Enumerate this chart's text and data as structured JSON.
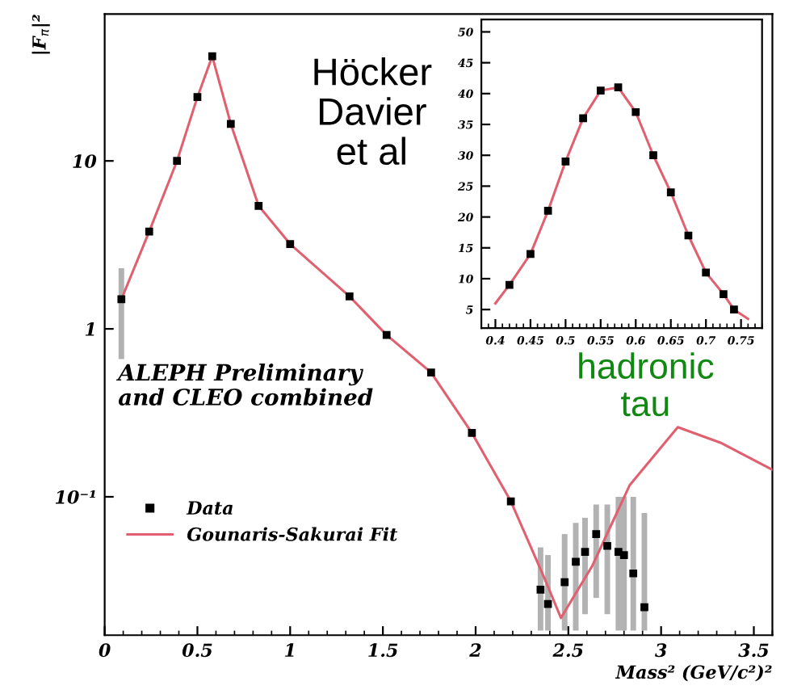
{
  "chart_data": [
    {
      "type": "scatter",
      "xlabel": "Mass² (GeV/c²)²",
      "ylabel": "|F$_{π}$|²",
      "log": "y",
      "xlim": [
        0,
        3.6
      ],
      "ylim": [
        0.015,
        75
      ],
      "xticks": [
        0,
        0.5,
        1,
        1.5,
        2,
        2.5,
        3,
        3.5
      ],
      "yticks": [
        {
          "value": 0.1,
          "label": "10⁻¹"
        },
        1,
        10
      ],
      "legend": "bottom left",
      "grid": false,
      "annotations": [
        "Höcker\nDavier\net al",
        "hadronic\ntau",
        "ALEPH Preliminary\nand CLEO combined"
      ],
      "series": [
        {
          "name": "Data",
          "marker": "square",
          "color": "#000000",
          "x": [
            0.09,
            0.24,
            0.39,
            0.5,
            0.58,
            0.68,
            0.83,
            1.0,
            1.32,
            1.52,
            1.76,
            1.98,
            2.19,
            2.35,
            2.39,
            2.48,
            2.54,
            2.59,
            2.65,
            2.71,
            2.77,
            2.8,
            2.85,
            2.91
          ],
          "values": [
            1.5,
            3.8,
            10,
            24,
            42,
            16.6,
            5.4,
            3.2,
            1.56,
            0.92,
            0.55,
            0.24,
            0.094,
            0.028,
            0.023,
            0.031,
            0.041,
            0.047,
            0.06,
            0.051,
            0.047,
            0.045,
            0.035,
            0.022
          ],
          "errors": [
            [
              0.66,
              2.3
            ],
            null,
            null,
            null,
            null,
            null,
            null,
            null,
            null,
            null,
            null,
            null,
            null,
            [
              0.016,
              0.05
            ],
            [
              0.016,
              0.045
            ],
            [
              0.016,
              0.06
            ],
            [
              0.016,
              0.07
            ],
            [
              0.02,
              0.075
            ],
            [
              0.025,
              0.09
            ],
            [
              0.02,
              0.09
            ],
            [
              0.016,
              0.1
            ],
            [
              0.016,
              0.1
            ],
            [
              0.016,
              0.1
            ],
            [
              0.016,
              0.08
            ]
          ]
        },
        {
          "name": "Gounaris-Sakurai Fit",
          "type": "line",
          "color": "#e06070",
          "line_style": "solid",
          "x": [
            0.09,
            0.24,
            0.39,
            0.5,
            0.58,
            0.68,
            0.83,
            1.0,
            1.32,
            1.52,
            1.76,
            1.98,
            2.19,
            2.37,
            2.46,
            2.63,
            2.83,
            3.09,
            3.32,
            3.6
          ],
          "values": [
            1.5,
            3.8,
            10,
            24,
            42,
            16.6,
            5.4,
            3.2,
            1.56,
            0.92,
            0.55,
            0.24,
            0.094,
            0.033,
            0.019,
            0.039,
            0.117,
            0.26,
            0.21,
            0.145
          ]
        }
      ]
    },
    {
      "type": "scatter",
      "xlim": [
        0.38,
        0.78
      ],
      "ylim": [
        2,
        52
      ],
      "xticks": [
        0.4,
        0.45,
        0.5,
        0.55,
        0.6,
        0.65,
        0.7,
        0.75
      ],
      "yticks": [
        5,
        10,
        15,
        20,
        25,
        30,
        35,
        40,
        45,
        50
      ],
      "grid": false,
      "series": [
        {
          "marker": "square",
          "color": "#000000",
          "x": [
            0.42,
            0.45,
            0.475,
            0.5,
            0.525,
            0.55,
            0.575,
            0.6,
            0.625,
            0.65,
            0.675,
            0.7,
            0.725,
            0.74
          ],
          "values": [
            9,
            14,
            21,
            29,
            36,
            40.5,
            41,
            37,
            30,
            24,
            17,
            11,
            7.5,
            5
          ]
        },
        {
          "type": "line",
          "color": "#e06070",
          "line_style": "solid",
          "x": [
            0.4,
            0.42,
            0.45,
            0.475,
            0.5,
            0.525,
            0.55,
            0.575,
            0.6,
            0.625,
            0.65,
            0.675,
            0.7,
            0.725,
            0.74,
            0.76
          ],
          "values": [
            6,
            9,
            14,
            21,
            29,
            36,
            40.5,
            41,
            37,
            30,
            24,
            17,
            11,
            7.5,
            5,
            3.5
          ]
        }
      ]
    }
  ]
}
